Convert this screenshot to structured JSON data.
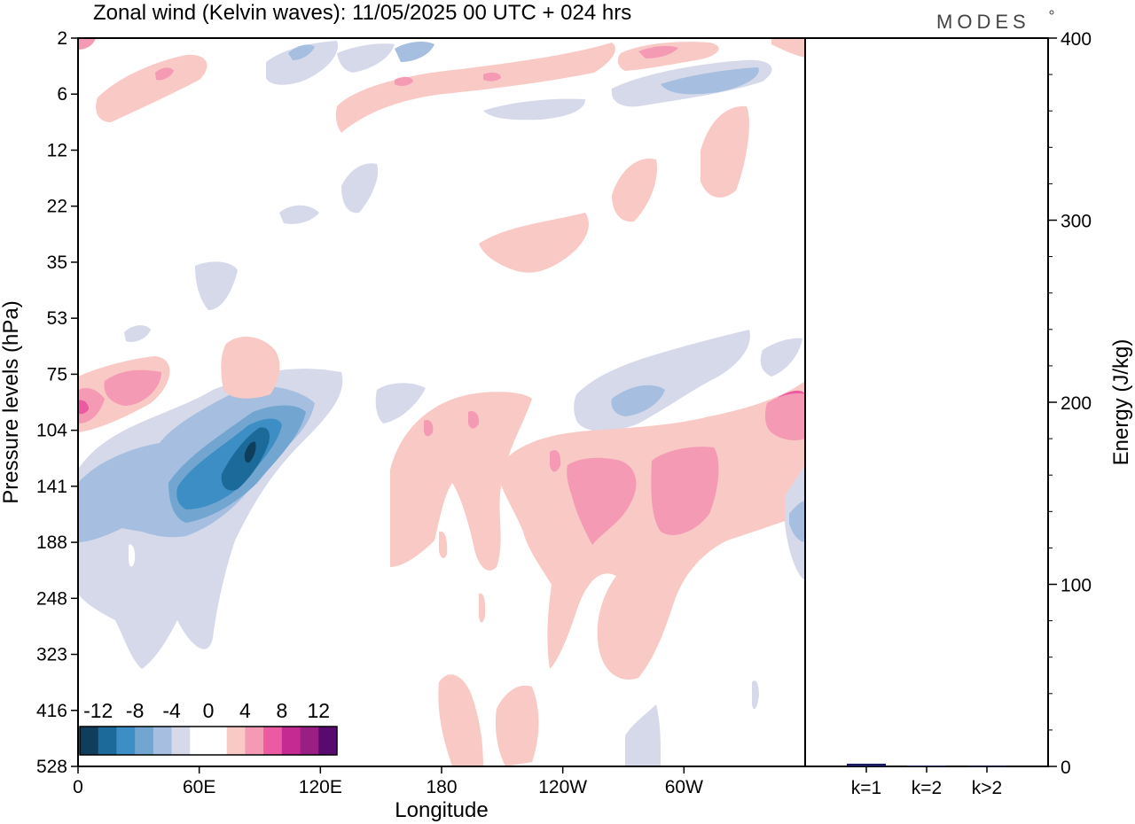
{
  "chart_data": {
    "type": "heatmap",
    "title": "Zonal wind (Kelvin waves):  11/05/2025  00 UTC  + 024 hrs",
    "brand": "MODES",
    "xlabel": "Longitude",
    "ylabel": "Pressure levels (hPa)",
    "x_range_deg": [
      0,
      360
    ],
    "x_ticks": [
      {
        "deg": 0,
        "label": "0"
      },
      {
        "deg": 60,
        "label": "60E"
      },
      {
        "deg": 120,
        "label": "120E"
      },
      {
        "deg": 180,
        "label": "180"
      },
      {
        "deg": 240,
        "label": "120W"
      },
      {
        "deg": 300,
        "label": "60W"
      }
    ],
    "y_levels": [
      "2",
      "6",
      "12",
      "22",
      "35",
      "53",
      "75",
      "104",
      "141",
      "188",
      "248",
      "323",
      "416",
      "528"
    ],
    "colorbar": {
      "labels": [
        "-12",
        "-8",
        "-4",
        "0",
        "4",
        "8",
        "12"
      ],
      "colors": [
        "#0f3d5c",
        "#1b6a99",
        "#3d8ec4",
        "#72a6d1",
        "#a6bedf",
        "#d5d9ea",
        "#ffffff",
        "#ffffff",
        "#f8c9c5",
        "#f59ab5",
        "#ec5aa1",
        "#c52a92",
        "#991f84",
        "#5a0a6e"
      ]
    },
    "contour_shading": {
      "positive_light": "#f8c9c5",
      "positive_mid": "#f59ab5",
      "positive_strong": "#ec5aa1",
      "negative_light": "#d5d9ea",
      "negative_mid": "#a6bedf",
      "negative_strong": "#72a6d1",
      "negative_deeper": "#3d8ec4",
      "negative_deep": "#1b6a99",
      "negative_core": "#0f3d5c"
    },
    "energy_panel": {
      "ylabel": "Energy (J/kg)",
      "ylim": [
        0,
        400
      ],
      "yticks": [
        "0",
        "100",
        "200",
        "300",
        "400"
      ],
      "categories": [
        "k=1",
        "k=2",
        "k>2"
      ],
      "values": [
        1.5,
        0.4,
        0.2
      ],
      "bar_color": "#1a1a5e"
    }
  }
}
